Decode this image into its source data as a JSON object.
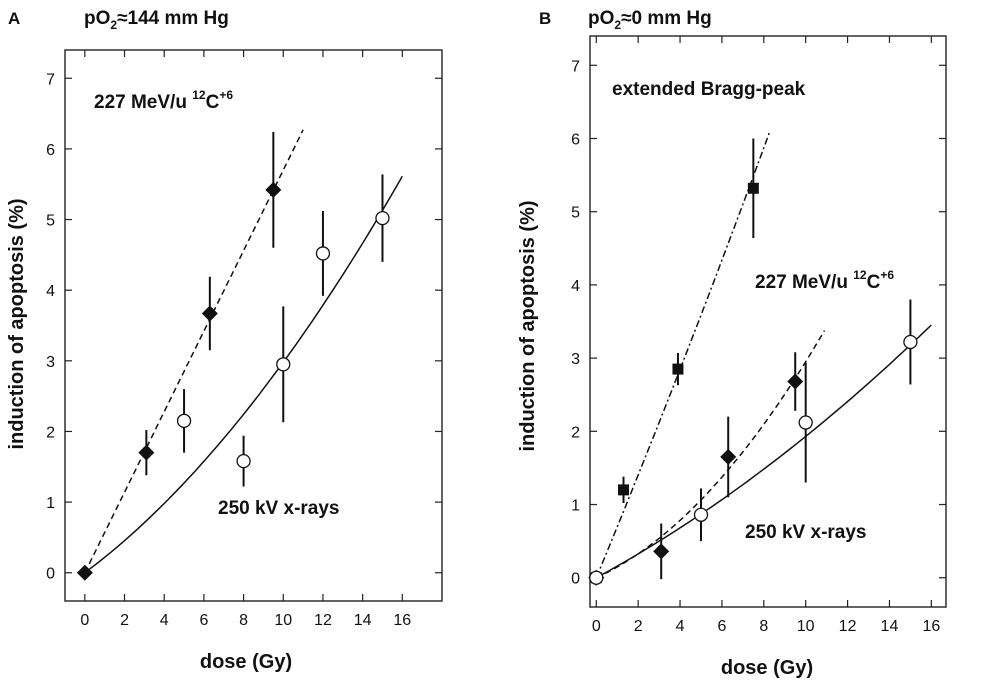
{
  "chart_data": [
    {
      "panel": "A",
      "type": "scatter",
      "condition": {
        "main": "pO",
        "sub": "2",
        "rest": "≈144 mm Hg"
      },
      "xlabel": "dose (Gy)",
      "ylabel": "induction of apoptosis (%)",
      "xlim": [
        -1,
        18
      ],
      "ylim": [
        -0.4,
        7.4
      ],
      "xticks": [
        0,
        2,
        4,
        6,
        8,
        10,
        12,
        14,
        16
      ],
      "yticks": [
        0,
        1,
        2,
        3,
        4,
        5,
        6,
        7
      ],
      "grid": false,
      "annotations": [
        {
          "key": "carbon",
          "text_pre": "227 MeV/u ",
          "sup": "12",
          "text_mid": "C",
          "sup2": "+6",
          "x": 0.5,
          "y": 6.6
        },
        {
          "key": "xray",
          "text": "250 kV x-rays",
          "x": 7.8,
          "y": 0.7
        }
      ],
      "series": [
        {
          "name": "227 MeV/u 12C+6",
          "marker": "filled-diamond",
          "points": [
            {
              "x": 0,
              "y": 0,
              "err": 0
            },
            {
              "x": 3.1,
              "y": 1.7,
              "err": 0.32
            },
            {
              "x": 6.3,
              "y": 3.67,
              "err": 0.52
            },
            {
              "x": 9.5,
              "y": 5.42,
              "err": 0.82
            }
          ],
          "fit": {
            "style": "dashed",
            "kind": "linear",
            "a": 0.57,
            "b": 0,
            "x0": 0,
            "x1": 11
          }
        },
        {
          "name": "250 kV x-rays",
          "marker": "open-circle",
          "points": [
            {
              "x": 5,
              "y": 2.15,
              "err": 0.45
            },
            {
              "x": 8,
              "y": 1.58,
              "err": 0.36
            },
            {
              "x": 10,
              "y": 2.95,
              "err": 0.82
            },
            {
              "x": 12,
              "y": 4.52,
              "err": 0.6
            },
            {
              "x": 15,
              "y": 5.02,
              "err": 0.62
            }
          ],
          "fit": {
            "style": "solid",
            "kind": "linear-quadratic",
            "a": 0.21,
            "b": 0.0088,
            "x0": 0,
            "x1": 16
          }
        }
      ]
    },
    {
      "panel": "B",
      "type": "scatter",
      "condition": {
        "main": "pO",
        "sub": "2",
        "rest": "≈0 mm Hg"
      },
      "xlabel": "dose (Gy)",
      "ylabel": "induction of apoptosis (%)",
      "xlim": [
        -0.3,
        16.7
      ],
      "ylim": [
        -0.4,
        7.4
      ],
      "xticks": [
        0,
        2,
        4,
        6,
        8,
        10,
        12,
        14,
        16
      ],
      "yticks": [
        0,
        1,
        2,
        3,
        4,
        5,
        6,
        7
      ],
      "grid": false,
      "annotations": [
        {
          "key": "bragg",
          "text": "extended Bragg-peak",
          "x": 0.8,
          "y": 6.8
        },
        {
          "key": "carbon",
          "text_pre": "227 MeV/u ",
          "sup": "12",
          "text_mid": "C",
          "sup2": "+6",
          "x": 7.5,
          "y": 3.8
        },
        {
          "key": "xray",
          "text": "250 kV x-rays",
          "x": 7.2,
          "y": 0.38
        }
      ],
      "series": [
        {
          "name": "extended Bragg-peak",
          "marker": "filled-square",
          "points": [
            {
              "x": 0,
              "y": 0,
              "err": 0
            },
            {
              "x": 1.3,
              "y": 1.2,
              "err": 0.18
            },
            {
              "x": 3.9,
              "y": 2.85,
              "err": 0.22
            },
            {
              "x": 7.5,
              "y": 5.32,
              "err": 0.68
            }
          ],
          "fit": {
            "style": "dash-dot",
            "kind": "linear-quadratic",
            "a": 0.69,
            "b": 0.0055,
            "x0": 0,
            "x1": 8.3
          }
        },
        {
          "name": "227 MeV/u 12C+6",
          "marker": "filled-diamond",
          "points": [
            {
              "x": 0,
              "y": 0,
              "err": 0
            },
            {
              "x": 3.1,
              "y": 0.36,
              "err": 0.38
            },
            {
              "x": 6.3,
              "y": 1.65,
              "err": 0.55
            },
            {
              "x": 9.5,
              "y": 2.68,
              "err": 0.4
            }
          ],
          "fit": {
            "style": "dashed",
            "kind": "linear-quadratic",
            "a": 0.13,
            "b": 0.0165,
            "x0": 0,
            "x1": 10.9
          }
        },
        {
          "name": "250 kV x-rays",
          "marker": "open-circle",
          "points": [
            {
              "x": 0,
              "y": 0,
              "err": 0
            },
            {
              "x": 5,
              "y": 0.86,
              "err": 0.36
            },
            {
              "x": 10,
              "y": 2.12,
              "err": 0.82
            },
            {
              "x": 15,
              "y": 3.22,
              "err": 0.58
            }
          ],
          "fit": {
            "style": "solid",
            "kind": "linear-quadratic",
            "a": 0.155,
            "b": 0.0038,
            "x0": 0,
            "x1": 16
          }
        }
      ]
    }
  ]
}
